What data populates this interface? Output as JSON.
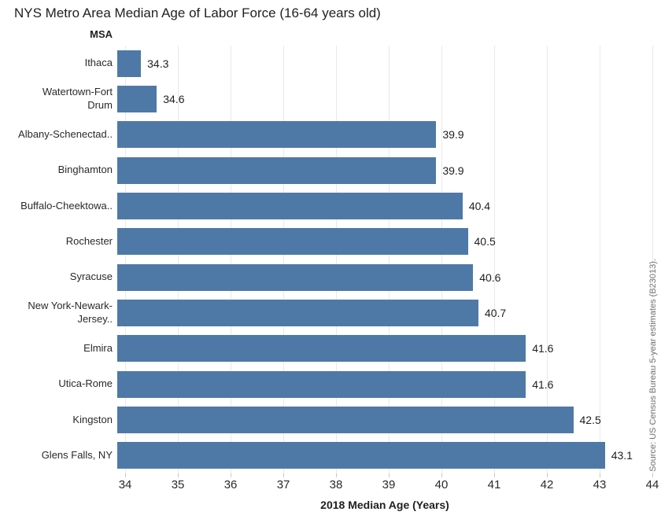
{
  "source_note": "Source: US Census Bureau 5-year estimates (B23013).",
  "chart_data": {
    "type": "bar",
    "orientation": "horizontal",
    "title": "NYS Metro Area Median Age of Labor Force (16-64 years old)",
    "category_axis_label": "MSA",
    "xlabel": "2018 Median Age (Years)",
    "categories": [
      "Ithaca",
      "Watertown-Fort Drum",
      "Albany-Schenectad..",
      "Binghamton",
      "Buffalo-Cheektowa..",
      "Rochester",
      "Syracuse",
      "New York-Newark-Jersey..",
      "Elmira",
      "Utica-Rome",
      "Kingston",
      "Glens Falls, NY"
    ],
    "category_display_lines": [
      [
        "Ithaca"
      ],
      [
        "Watertown-Fort",
        "Drum"
      ],
      [
        "Albany-Schenectad.."
      ],
      [
        "Binghamton"
      ],
      [
        "Buffalo-Cheektowa.."
      ],
      [
        "Rochester"
      ],
      [
        "Syracuse"
      ],
      [
        "New York-Newark-",
        "Jersey.."
      ],
      [
        "Elmira"
      ],
      [
        "Utica-Rome"
      ],
      [
        "Kingston"
      ],
      [
        "Glens Falls, NY"
      ]
    ],
    "values": [
      34.3,
      34.6,
      39.9,
      39.9,
      40.4,
      40.5,
      40.6,
      40.7,
      41.6,
      41.6,
      42.5,
      43.1
    ],
    "value_decimals": 1,
    "xlim": [
      33.85,
      44.0
    ],
    "xticks": [
      34,
      35,
      36,
      37,
      38,
      39,
      40,
      41,
      42,
      43,
      44
    ],
    "grid": true,
    "value_labels": true,
    "bar_color": "#4e79a7",
    "gridline_color": "#e9e9e9",
    "tick_color": "#c9c9c9"
  }
}
